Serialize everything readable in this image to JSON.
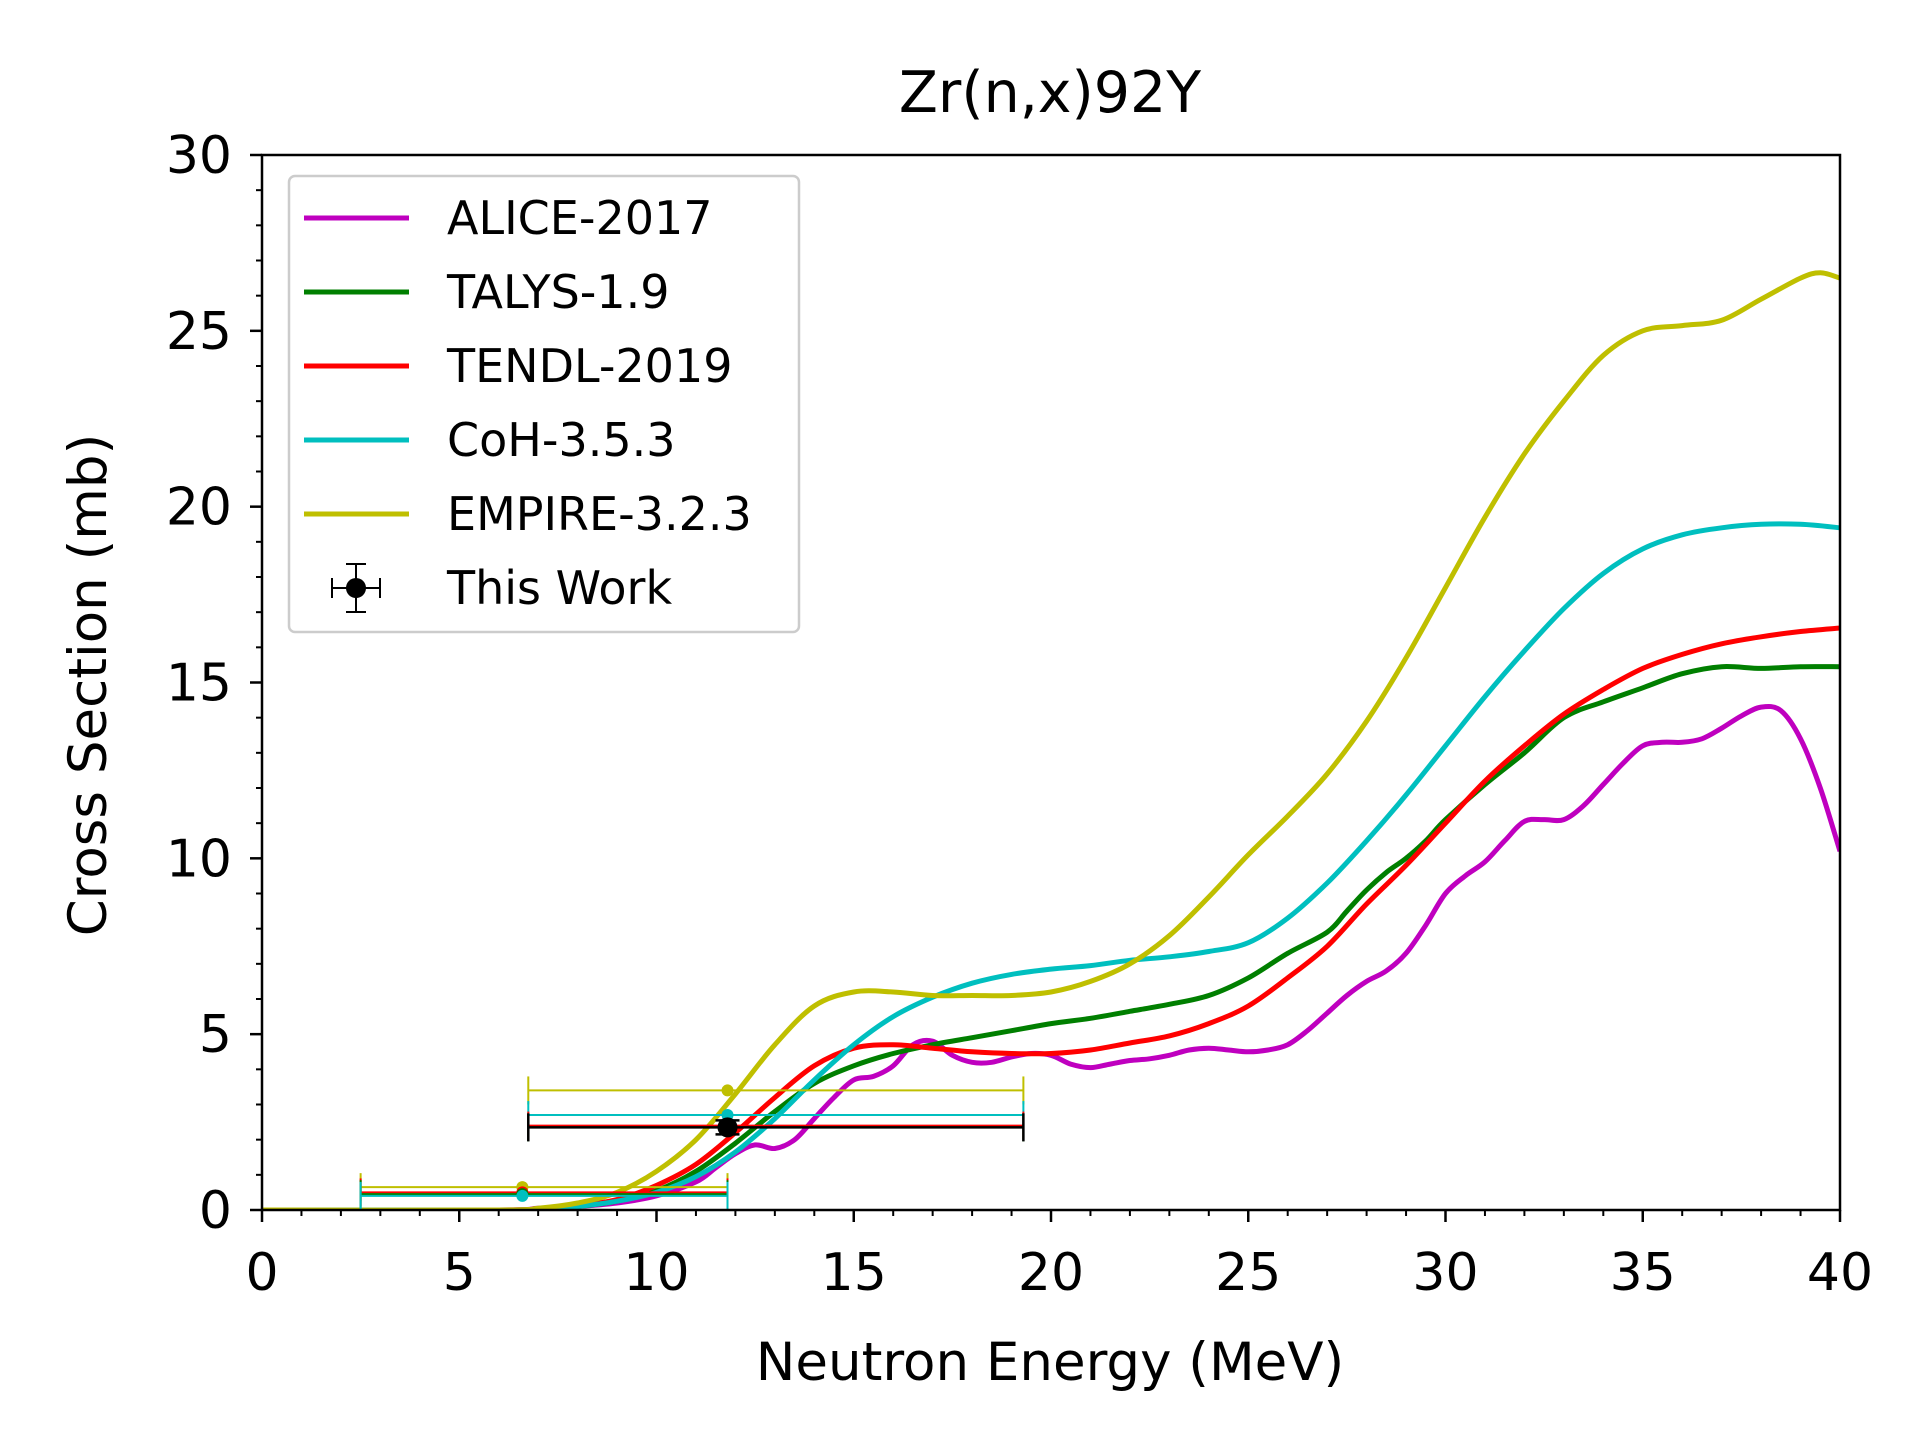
{
  "chart_data": {
    "type": "line",
    "title": "Zr(n,x)92Y",
    "xlabel": "Neutron Energy (MeV)",
    "ylabel": "Cross Section (mb)",
    "xlim": [
      0,
      40
    ],
    "ylim": [
      0,
      30
    ],
    "xticks": [
      "0",
      "5",
      "10",
      "15",
      "20",
      "25",
      "30",
      "35",
      "40"
    ],
    "yticks": [
      "0",
      "5",
      "10",
      "15",
      "20",
      "25",
      "30"
    ],
    "grid": false,
    "legend_position": "top-left",
    "series": [
      {
        "name": "ALICE-2017",
        "color": "#bf00bf",
        "x": [
          0,
          6,
          7,
          8,
          9,
          10,
          11,
          11.5,
          12,
          12.5,
          13,
          13.5,
          14,
          14.5,
          15,
          15.5,
          16,
          16.5,
          17,
          17.5,
          18,
          18.5,
          19,
          19.5,
          20,
          20.5,
          21,
          21.5,
          22,
          22.5,
          23,
          23.5,
          24,
          24.5,
          25,
          25.5,
          26,
          26.5,
          27,
          27.5,
          28,
          28.5,
          29,
          29.5,
          30,
          30.5,
          31,
          31.5,
          32,
          32.5,
          33,
          33.5,
          34,
          34.5,
          35,
          35.5,
          36,
          36.5,
          37,
          37.5,
          38,
          38.5,
          39,
          39.5,
          40
        ],
        "y": [
          0,
          0,
          0.05,
          0.1,
          0.2,
          0.4,
          0.8,
          1.2,
          1.6,
          1.85,
          1.75,
          2.0,
          2.6,
          3.2,
          3.7,
          3.8,
          4.1,
          4.7,
          4.8,
          4.4,
          4.2,
          4.2,
          4.35,
          4.45,
          4.4,
          4.15,
          4.05,
          4.15,
          4.25,
          4.3,
          4.4,
          4.55,
          4.6,
          4.55,
          4.5,
          4.55,
          4.7,
          5.1,
          5.6,
          6.1,
          6.5,
          6.8,
          7.3,
          8.1,
          9.0,
          9.5,
          9.9,
          10.5,
          11.05,
          11.1,
          11.1,
          11.5,
          12.1,
          12.7,
          13.2,
          13.3,
          13.3,
          13.4,
          13.7,
          14.05,
          14.3,
          14.2,
          13.4,
          12.0,
          10.2
        ]
      },
      {
        "name": "TALYS-1.9",
        "color": "#007f00",
        "x": [
          0,
          6,
          7,
          8,
          9,
          10,
          11,
          12,
          13,
          14,
          15,
          16,
          17,
          18,
          19,
          20,
          21,
          22,
          23,
          24,
          25,
          26,
          27,
          27.5,
          28,
          28.5,
          29,
          29.5,
          30,
          31,
          32,
          33,
          34,
          35,
          36,
          37,
          38,
          39,
          40
        ],
        "y": [
          0,
          0,
          0.03,
          0.1,
          0.25,
          0.55,
          1.1,
          1.9,
          2.8,
          3.6,
          4.1,
          4.45,
          4.7,
          4.9,
          5.1,
          5.3,
          5.45,
          5.65,
          5.85,
          6.1,
          6.6,
          7.3,
          7.9,
          8.5,
          9.1,
          9.6,
          10.0,
          10.5,
          11.1,
          12.1,
          13.0,
          14.0,
          14.45,
          14.85,
          15.25,
          15.45,
          15.4,
          15.45,
          15.45
        ]
      },
      {
        "name": "TENDL-2019",
        "color": "#ff0000",
        "x": [
          0,
          6,
          7,
          8,
          9,
          10,
          11,
          12,
          13,
          14,
          15,
          16,
          17,
          18,
          19,
          20,
          21,
          22,
          23,
          24,
          25,
          26,
          27,
          28,
          29,
          30,
          31,
          32,
          33,
          34,
          35,
          36,
          37,
          38,
          39,
          40
        ],
        "y": [
          0,
          0,
          0.03,
          0.12,
          0.3,
          0.7,
          1.3,
          2.2,
          3.2,
          4.1,
          4.6,
          4.7,
          4.6,
          4.5,
          4.45,
          4.45,
          4.55,
          4.75,
          4.95,
          5.3,
          5.8,
          6.6,
          7.5,
          8.7,
          9.8,
          11.0,
          12.2,
          13.2,
          14.1,
          14.8,
          15.4,
          15.8,
          16.1,
          16.3,
          16.45,
          16.55
        ]
      },
      {
        "name": "CoH-3.5.3",
        "color": "#00bfbf",
        "x": [
          0,
          6,
          7,
          8,
          9,
          10,
          11,
          12,
          13,
          14,
          15,
          16,
          17,
          18,
          19,
          20,
          21,
          22,
          23,
          24,
          25,
          26,
          27,
          28,
          29,
          30,
          31,
          32,
          33,
          34,
          35,
          36,
          37,
          38,
          39,
          40
        ],
        "y": [
          0,
          0,
          0.02,
          0.1,
          0.25,
          0.5,
          0.95,
          1.65,
          2.6,
          3.7,
          4.7,
          5.5,
          6.05,
          6.45,
          6.7,
          6.85,
          6.95,
          7.1,
          7.2,
          7.35,
          7.6,
          8.3,
          9.3,
          10.5,
          11.8,
          13.2,
          14.6,
          15.9,
          17.1,
          18.1,
          18.8,
          19.2,
          19.4,
          19.5,
          19.5,
          19.4
        ]
      },
      {
        "name": "EMPIRE-3.2.3",
        "color": "#bfbf00",
        "x": [
          0,
          6,
          7,
          8,
          9,
          10,
          11,
          12,
          13,
          14,
          15,
          16,
          17,
          18,
          19,
          20,
          21,
          22,
          23,
          24,
          25,
          26,
          27,
          28,
          29,
          30,
          31,
          32,
          33,
          34,
          35,
          36,
          37,
          38,
          39,
          39.5,
          40
        ],
        "y": [
          0,
          0,
          0.05,
          0.2,
          0.5,
          1.1,
          2.0,
          3.3,
          4.7,
          5.8,
          6.2,
          6.2,
          6.1,
          6.1,
          6.1,
          6.2,
          6.5,
          7.0,
          7.8,
          8.9,
          10.1,
          11.2,
          12.4,
          13.9,
          15.7,
          17.7,
          19.7,
          21.5,
          23.0,
          24.3,
          25.0,
          25.15,
          25.3,
          25.9,
          26.5,
          26.65,
          26.5
        ]
      }
    ],
    "this_work": {
      "name": "This Work",
      "color": "#000000",
      "x": 11.8,
      "y": 2.35,
      "xerr": [
        6.75,
        19.3
      ],
      "yerr": 0.2
    },
    "theory_at_energy": [
      {
        "x": 6.6,
        "xerr": [
          2.5,
          11.8
        ],
        "points": [
          {
            "color": "#bfbf00",
            "y": 0.65
          },
          {
            "color": "#ff0000",
            "y": 0.5
          },
          {
            "color": "#007f00",
            "y": 0.45
          },
          {
            "color": "#00bfbf",
            "y": 0.4
          }
        ]
      },
      {
        "x": 11.8,
        "xerr": [
          6.75,
          19.3
        ],
        "points": [
          {
            "color": "#bfbf00",
            "y": 3.4
          },
          {
            "color": "#00bfbf",
            "y": 2.7
          },
          {
            "color": "#ff0000",
            "y": 2.4
          },
          {
            "color": "#007f00",
            "y": 2.35
          }
        ]
      }
    ]
  }
}
